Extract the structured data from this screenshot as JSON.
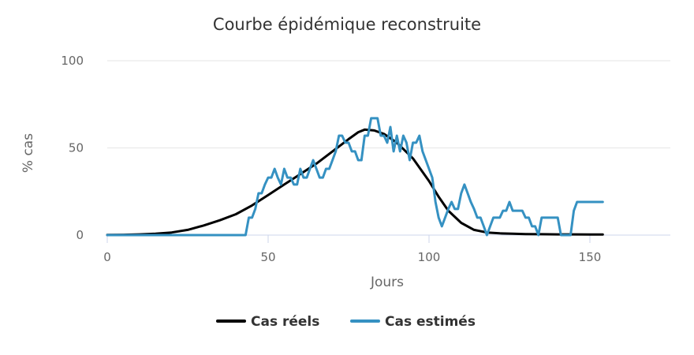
{
  "chart_data": {
    "type": "line",
    "title": "Courbe épidémique reconstruite",
    "xlabel": "Jours",
    "ylabel": "% cas",
    "xlim": [
      0,
      175
    ],
    "ylim": [
      0,
      100
    ],
    "xticks": [
      0,
      50,
      100,
      150
    ],
    "xtick_labels": [
      "0",
      "50",
      "100",
      "150"
    ],
    "yticks": [
      0,
      50,
      100
    ],
    "ytick_labels": [
      "0",
      "50",
      "100"
    ],
    "grid": true,
    "legend_position": "bottom-center",
    "series": [
      {
        "name": "Cas réels",
        "color": "#000000",
        "points": [
          [
            0,
            0.1
          ],
          [
            5,
            0.2
          ],
          [
            10,
            0.4
          ],
          [
            15,
            0.8
          ],
          [
            20,
            1.5
          ],
          [
            25,
            3
          ],
          [
            30,
            5.5
          ],
          [
            35,
            8.5
          ],
          [
            40,
            12
          ],
          [
            45,
            17
          ],
          [
            50,
            23
          ],
          [
            55,
            29
          ],
          [
            60,
            35
          ],
          [
            65,
            41
          ],
          [
            70,
            48
          ],
          [
            75,
            55
          ],
          [
            78,
            59
          ],
          [
            80,
            60.5
          ],
          [
            83,
            60
          ],
          [
            86,
            58
          ],
          [
            90,
            53
          ],
          [
            95,
            44
          ],
          [
            100,
            31
          ],
          [
            103,
            22
          ],
          [
            106,
            14
          ],
          [
            110,
            7
          ],
          [
            114,
            3
          ],
          [
            118,
            1.5
          ],
          [
            122,
            1
          ],
          [
            126,
            0.8
          ],
          [
            130,
            0.6
          ],
          [
            135,
            0.5
          ],
          [
            140,
            0.4
          ],
          [
            145,
            0.4
          ],
          [
            150,
            0.3
          ],
          [
            154,
            0.3
          ]
        ]
      },
      {
        "name": "Cas estimés",
        "color": "#3591c2",
        "points": [
          [
            0,
            0
          ],
          [
            43,
            0
          ],
          [
            44,
            10
          ],
          [
            45,
            10
          ],
          [
            46,
            15
          ],
          [
            47,
            24
          ],
          [
            48,
            24
          ],
          [
            49,
            29
          ],
          [
            50,
            33
          ],
          [
            51,
            33
          ],
          [
            52,
            38
          ],
          [
            53,
            33
          ],
          [
            54,
            29
          ],
          [
            55,
            38
          ],
          [
            56,
            33
          ],
          [
            57,
            33
          ],
          [
            58,
            29
          ],
          [
            59,
            29
          ],
          [
            60,
            38
          ],
          [
            61,
            33
          ],
          [
            62,
            33
          ],
          [
            63,
            38
          ],
          [
            64,
            43
          ],
          [
            65,
            38
          ],
          [
            66,
            33
          ],
          [
            67,
            33
          ],
          [
            68,
            38
          ],
          [
            69,
            38
          ],
          [
            70,
            43
          ],
          [
            71,
            48
          ],
          [
            72,
            57
          ],
          [
            73,
            57
          ],
          [
            74,
            53
          ],
          [
            75,
            53
          ],
          [
            76,
            48
          ],
          [
            77,
            48
          ],
          [
            78,
            43
          ],
          [
            79,
            43
          ],
          [
            80,
            57
          ],
          [
            81,
            57
          ],
          [
            82,
            67
          ],
          [
            84,
            67
          ],
          [
            85,
            57
          ],
          [
            86,
            57
          ],
          [
            87,
            53
          ],
          [
            88,
            62
          ],
          [
            89,
            48
          ],
          [
            90,
            57
          ],
          [
            91,
            48
          ],
          [
            92,
            57
          ],
          [
            93,
            53
          ],
          [
            94,
            43
          ],
          [
            95,
            53
          ],
          [
            96,
            53
          ],
          [
            97,
            57
          ],
          [
            98,
            48
          ],
          [
            100,
            38
          ],
          [
            101,
            33
          ],
          [
            102,
            19
          ],
          [
            103,
            10
          ],
          [
            104,
            5
          ],
          [
            105,
            10
          ],
          [
            106,
            15
          ],
          [
            107,
            19
          ],
          [
            108,
            15
          ],
          [
            109,
            15
          ],
          [
            110,
            24
          ],
          [
            111,
            29
          ],
          [
            112,
            24
          ],
          [
            113,
            19
          ],
          [
            114,
            15
          ],
          [
            115,
            10
          ],
          [
            116,
            10
          ],
          [
            117,
            5
          ],
          [
            118,
            0
          ],
          [
            119,
            5
          ],
          [
            120,
            10
          ],
          [
            121,
            10
          ],
          [
            122,
            10
          ],
          [
            123,
            14
          ],
          [
            124,
            14
          ],
          [
            125,
            19
          ],
          [
            126,
            14
          ],
          [
            127,
            14
          ],
          [
            128,
            14
          ],
          [
            129,
            14
          ],
          [
            130,
            10
          ],
          [
            131,
            10
          ],
          [
            132,
            5
          ],
          [
            133,
            5
          ],
          [
            134,
            0
          ],
          [
            135,
            10
          ],
          [
            140,
            10
          ],
          [
            141,
            0
          ],
          [
            144,
            0
          ],
          [
            145,
            14
          ],
          [
            146,
            19
          ],
          [
            150,
            19
          ],
          [
            154,
            19
          ]
        ]
      }
    ]
  }
}
